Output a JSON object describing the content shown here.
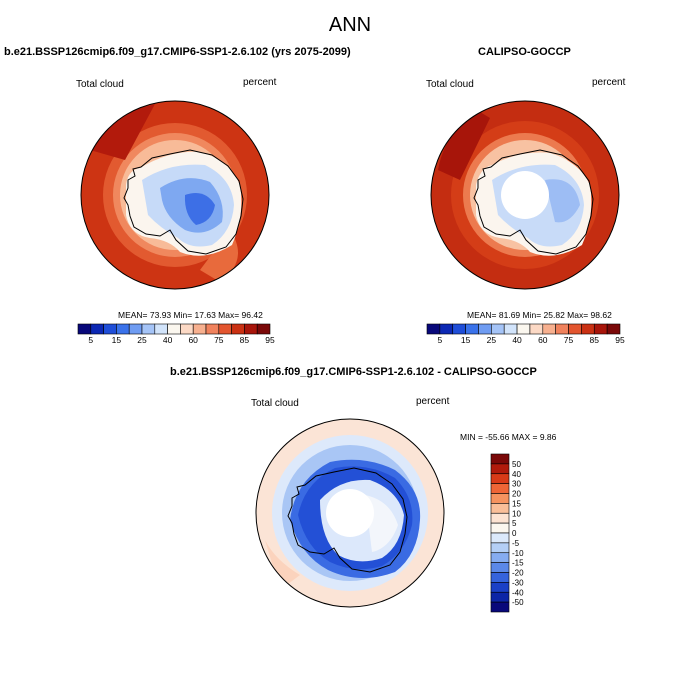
{
  "page_title": "ANN",
  "panels": [
    {
      "title": "b.e21.BSSP126cmip6.f09_g17.CMIP6-SSP1-2.6.102 (yrs 2075-2099)",
      "left_label": "Total cloud",
      "right_label": "percent",
      "stats": "MEAN=  73.93  Min=  17.63  Max=  96.42",
      "colorbar": {
        "colors": [
          "#08087a",
          "#0c28b4",
          "#1f4ed8",
          "#3a72ea",
          "#6f9cf2",
          "#a5c4f7",
          "#d2e4fb",
          "#fbf7ef",
          "#fcd9c5",
          "#f7b08f",
          "#f0825d",
          "#e3552f",
          "#ca3113",
          "#a8150a",
          "#7a0808"
        ],
        "tick_labels": [
          "5",
          "15",
          "25",
          "40",
          "60",
          "75",
          "85",
          "95"
        ]
      }
    },
    {
      "title": "CALIPSO-GOCCP",
      "left_label": "Total cloud",
      "right_label": "percent",
      "stats": "MEAN=  81.69  Min=  25.82  Max=  98.62",
      "colorbar": {
        "colors": [
          "#08087a",
          "#0c28b4",
          "#1f4ed8",
          "#3a72ea",
          "#6f9cf2",
          "#a5c4f7",
          "#d2e4fb",
          "#fbf7ef",
          "#fcd9c5",
          "#f7b08f",
          "#f0825d",
          "#e3552f",
          "#ca3113",
          "#a8150a",
          "#7a0808"
        ],
        "tick_labels": [
          "5",
          "15",
          "25",
          "40",
          "60",
          "75",
          "85",
          "95"
        ]
      }
    },
    {
      "title": "b.e21.BSSP126cmip6.f09_g17.CMIP6-SSP1-2.6.102 - CALIPSO-GOCCP",
      "left_label": "Total cloud",
      "right_label": "percent",
      "stats": "MIN = -55.66  MAX =   9.86",
      "colorbar": {
        "colors": [
          "#7a0808",
          "#b01a0c",
          "#d83a18",
          "#ee6536",
          "#f5935f",
          "#f9bf99",
          "#fce3d2",
          "#fbf7ef",
          "#dbe9fb",
          "#b4cff6",
          "#86acf0",
          "#5b88e8",
          "#3563dc",
          "#1b40c6",
          "#0c25a6",
          "#08087a"
        ],
        "tick_labels": [
          "50",
          "40",
          "30",
          "20",
          "15",
          "10",
          "5",
          "0",
          "-5",
          "-10",
          "-15",
          "-20",
          "-30",
          "-40",
          "-50"
        ]
      }
    }
  ]
}
